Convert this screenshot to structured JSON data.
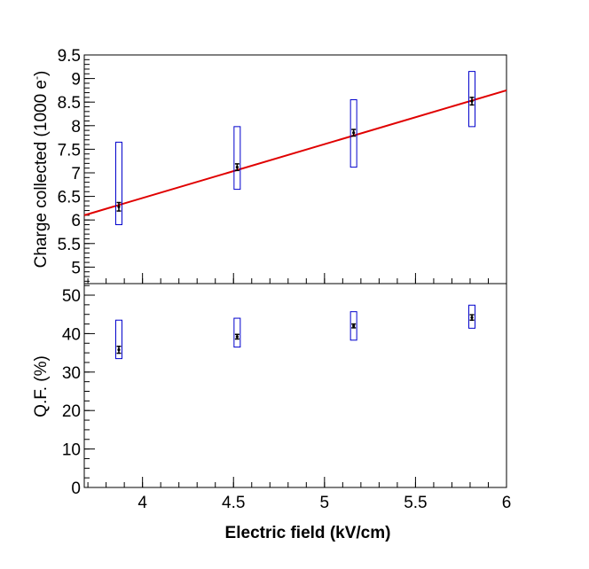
{
  "chart_data": [
    {
      "type": "scatter",
      "id": "charge",
      "ylabel_main": "Charge collected (1000 e",
      "ylabel_sup": "-",
      "ylabel_close": ")",
      "ylim": [
        4.65,
        9.5
      ],
      "yticks": [
        5,
        5.5,
        6,
        6.5,
        7,
        7.5,
        8,
        8.5,
        9,
        9.5
      ],
      "ytick_labels": [
        "5",
        "5.5",
        "6",
        "6.5",
        "7",
        "7.5",
        "8",
        "8.5",
        "9",
        "9.5"
      ],
      "points": [
        {
          "x": 3.87,
          "y": 6.28,
          "stat_err": 0.09,
          "sys_low": 5.9,
          "sys_high": 7.65
        },
        {
          "x": 4.52,
          "y": 7.12,
          "stat_err": 0.07,
          "sys_low": 6.65,
          "sys_high": 7.98
        },
        {
          "x": 5.16,
          "y": 7.85,
          "stat_err": 0.07,
          "sys_low": 7.12,
          "sys_high": 8.55
        },
        {
          "x": 5.81,
          "y": 8.52,
          "stat_err": 0.08,
          "sys_low": 7.98,
          "sys_high": 9.15
        }
      ],
      "fit_line": {
        "x0": 3.68,
        "y0": 6.1,
        "x1": 6.0,
        "y1": 8.75
      }
    },
    {
      "type": "scatter",
      "id": "qf",
      "ylabel": "Q.F. (%)",
      "ylim": [
        0,
        53
      ],
      "yticks": [
        0,
        10,
        20,
        30,
        40,
        50
      ],
      "ytick_labels": [
        "0",
        "10",
        "20",
        "30",
        "40",
        "50"
      ],
      "points": [
        {
          "x": 3.87,
          "y": 35.8,
          "stat_err": 0.9,
          "sys_low": 33.5,
          "sys_high": 43.5
        },
        {
          "x": 4.52,
          "y": 39.2,
          "stat_err": 0.6,
          "sys_low": 36.5,
          "sys_high": 44.0
        },
        {
          "x": 5.16,
          "y": 42.0,
          "stat_err": 0.5,
          "sys_low": 38.3,
          "sys_high": 45.7
        },
        {
          "x": 5.81,
          "y": 44.2,
          "stat_err": 0.7,
          "sys_low": 41.4,
          "sys_high": 47.4
        }
      ]
    }
  ],
  "x_axis": {
    "label": "Electric field (kV/cm)",
    "xlim": [
      3.68,
      6.0
    ],
    "ticks": [
      4,
      4.5,
      5,
      5.5,
      6
    ],
    "tick_labels": [
      "4",
      "4.5",
      "5",
      "5.5",
      "6"
    ]
  },
  "colors": {
    "box": "#0000cc",
    "fit": "#e00000",
    "marker": "#000000",
    "axis": "#000000"
  }
}
